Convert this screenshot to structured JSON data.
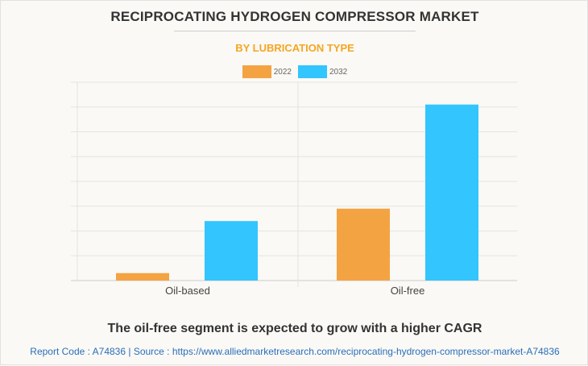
{
  "title": "RECIPROCATING HYDROGEN COMPRESSOR MARKET",
  "subtitle": "BY LUBRICATION TYPE",
  "caption": "The oil-free segment is expected to grow with a higher CAGR",
  "footer": "Report Code : A74836  |  Source : https://www.alliedmarketresearch.com/reciprocating-hydrogen-compressor-market-A74836",
  "chart_data": {
    "type": "bar",
    "title": "RECIPROCATING HYDROGEN COMPRESSOR MARKET",
    "subtitle": "BY LUBRICATION TYPE",
    "categories": [
      "Oil-based",
      "Oil-free"
    ],
    "series": [
      {
        "name": "2022",
        "color": "#f4a343",
        "values": [
          0.3,
          2.9
        ]
      },
      {
        "name": "2032",
        "color": "#33c5fd",
        "values": [
          2.4,
          7.1
        ]
      }
    ],
    "ylim": [
      0,
      8
    ],
    "yticks_labeled": false,
    "grid": true,
    "legend": "top-center",
    "xlabel": "",
    "ylabel": ""
  }
}
